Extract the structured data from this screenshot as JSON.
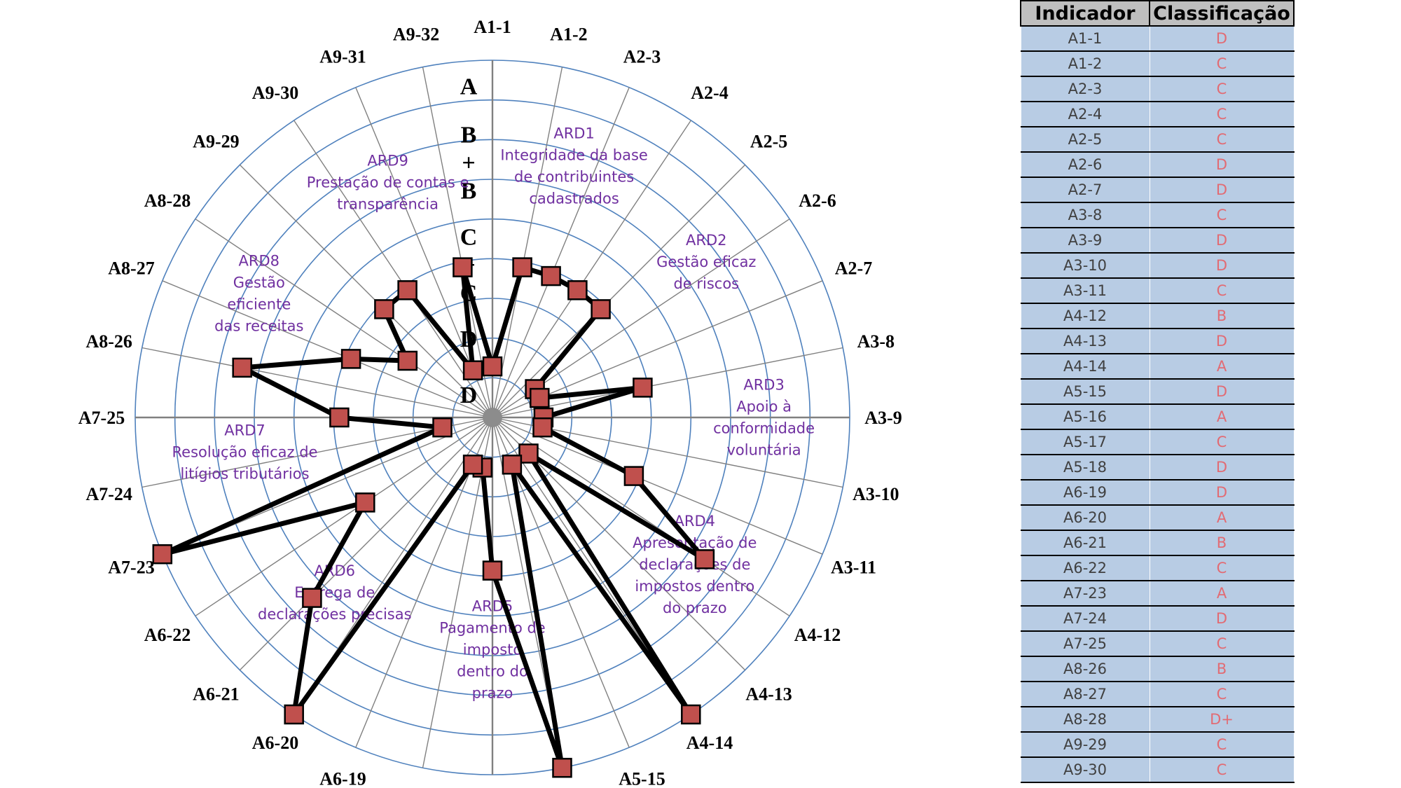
{
  "chart_data": {
    "type": "radar",
    "axes": [
      "A1-1",
      "A1-2",
      "A2-3",
      "A2-4",
      "A2-5",
      "A2-6",
      "A2-7",
      "A3-8",
      "A3-9",
      "A3-10",
      "A3-11",
      "A4-12",
      "A4-13",
      "A4-14",
      "A5-15",
      "A5-16",
      "A5-17",
      "A5-18",
      "A6-19",
      "A6-20",
      "A6-21",
      "A6-22",
      "A7-23",
      "A7-24",
      "A7-25",
      "A8-26",
      "A8-27",
      "A8-28",
      "A9-29",
      "A9-30",
      "A9-31",
      "A9-32"
    ],
    "grade_levels": [
      "D",
      "D+",
      "C",
      "C+",
      "B",
      "B+",
      "A"
    ],
    "values": [
      "D",
      "C",
      "C",
      "C",
      "C",
      "D",
      "D",
      "C",
      "D",
      "D",
      "C",
      "B",
      "D",
      "A",
      "D",
      "A",
      "C",
      "D",
      "D",
      "A",
      "B",
      "C",
      "A",
      "D",
      "C",
      "B",
      "C",
      "D+",
      "C",
      "C",
      "D",
      "C"
    ],
    "series": [
      {
        "values": [
          "D",
          "C",
          "C",
          "C",
          "C",
          "D",
          "D",
          "C",
          "D",
          "D",
          "C",
          "B",
          "D",
          "A",
          "D",
          "A",
          "C",
          "D",
          "D",
          "A",
          "B",
          "C",
          "A",
          "D",
          "C",
          "B",
          "C",
          "D+",
          "C",
          "C",
          "D",
          "C"
        ]
      }
    ],
    "grade_ticks": [
      {
        "lines": [
          "A"
        ]
      },
      {
        "lines": [
          "B",
          "+",
          "B"
        ]
      },
      {
        "lines": [
          "C",
          "+",
          "C"
        ]
      },
      {
        "lines": [
          "D",
          "+",
          "D"
        ]
      }
    ],
    "area_labels": [
      {
        "lines": [
          "ARD1",
          "Integridade da base",
          "de contribuintes",
          "cadastrados"
        ]
      },
      {
        "lines": [
          "ARD2",
          "Gestão eficaz",
          "de riscos"
        ]
      },
      {
        "lines": [
          "ARD3",
          "Apoio à",
          "conformidade",
          "voluntária"
        ]
      },
      {
        "lines": [
          "ARD4",
          "Apresentação de",
          "declarações de",
          "impostos dentro",
          "do prazo"
        ]
      },
      {
        "lines": [
          "ARD5",
          "Pagamento de",
          "imposto",
          "dentro do",
          "prazo"
        ]
      },
      {
        "lines": [
          "ARD6",
          "Entrega de",
          "declarações precisas"
        ]
      },
      {
        "lines": [
          "ARD7",
          "Resolução eficaz de",
          "litígios tributários"
        ]
      },
      {
        "lines": [
          "ARD8",
          "Gestão",
          "eficiente",
          "das receitas"
        ]
      },
      {
        "lines": [
          "ARD9",
          "Prestação de contas e",
          "transparência"
        ]
      }
    ],
    "colors": {
      "line": "#000000",
      "marker": "#c0504d",
      "grid_circle": "#4f81bd",
      "grid_spoke": "#808080",
      "area_label": "#7030a0"
    }
  },
  "table": {
    "headers": [
      "Indicador",
      "Classificação"
    ],
    "rows": [
      {
        "indicator": "A1-1",
        "grade": "D"
      },
      {
        "indicator": "A1-2",
        "grade": "C"
      },
      {
        "indicator": "A2-3",
        "grade": "C"
      },
      {
        "indicator": "A2-4",
        "grade": "C"
      },
      {
        "indicator": "A2-5",
        "grade": "C"
      },
      {
        "indicator": "A2-6",
        "grade": "D"
      },
      {
        "indicator": "A2-7",
        "grade": "D"
      },
      {
        "indicator": "A3-8",
        "grade": "C"
      },
      {
        "indicator": "A3-9",
        "grade": "D"
      },
      {
        "indicator": "A3-10",
        "grade": "D"
      },
      {
        "indicator": "A3-11",
        "grade": "C"
      },
      {
        "indicator": "A4-12",
        "grade": "B"
      },
      {
        "indicator": "A4-13",
        "grade": "D"
      },
      {
        "indicator": "A4-14",
        "grade": "A"
      },
      {
        "indicator": "A5-15",
        "grade": "D"
      },
      {
        "indicator": "A5-16",
        "grade": "A"
      },
      {
        "indicator": "A5-17",
        "grade": "C"
      },
      {
        "indicator": "A5-18",
        "grade": "D"
      },
      {
        "indicator": "A6-19",
        "grade": "D"
      },
      {
        "indicator": "A6-20",
        "grade": "A"
      },
      {
        "indicator": "A6-21",
        "grade": "B"
      },
      {
        "indicator": "A6-22",
        "grade": "C"
      },
      {
        "indicator": "A7-23",
        "grade": "A"
      },
      {
        "indicator": "A7-24",
        "grade": "D"
      },
      {
        "indicator": "A7-25",
        "grade": "C"
      },
      {
        "indicator": "A8-26",
        "grade": "B"
      },
      {
        "indicator": "A8-27",
        "grade": "C"
      },
      {
        "indicator": "A8-28",
        "grade": "D+"
      },
      {
        "indicator": "A9-29",
        "grade": "C"
      },
      {
        "indicator": "A9-30",
        "grade": "C"
      }
    ]
  }
}
